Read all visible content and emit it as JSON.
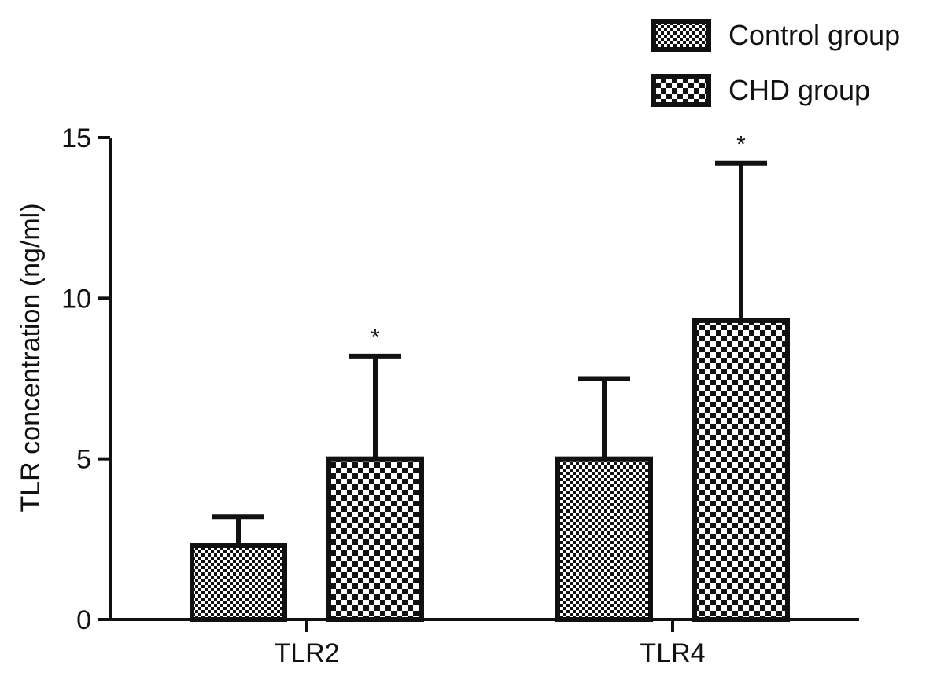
{
  "chart_data": {
    "type": "bar",
    "title": "",
    "xlabel": "",
    "ylabel": "TLR concentration (ng/ml)",
    "ylim": [
      0,
      15
    ],
    "yticks": [
      0,
      5,
      10,
      15
    ],
    "grid": false,
    "legend_position": "top-right",
    "categories": [
      "TLR2",
      "TLR4"
    ],
    "series": [
      {
        "name": "Control group",
        "pattern": "fine-checker",
        "values": [
          2.3,
          5.0
        ],
        "error_upper": [
          3.2,
          7.5
        ],
        "significance": [
          "",
          ""
        ]
      },
      {
        "name": "CHD group",
        "pattern": "coarse-checker",
        "values": [
          5.0,
          9.3
        ],
        "error_upper": [
          8.2,
          14.2
        ],
        "significance": [
          "*",
          "*"
        ]
      }
    ]
  }
}
